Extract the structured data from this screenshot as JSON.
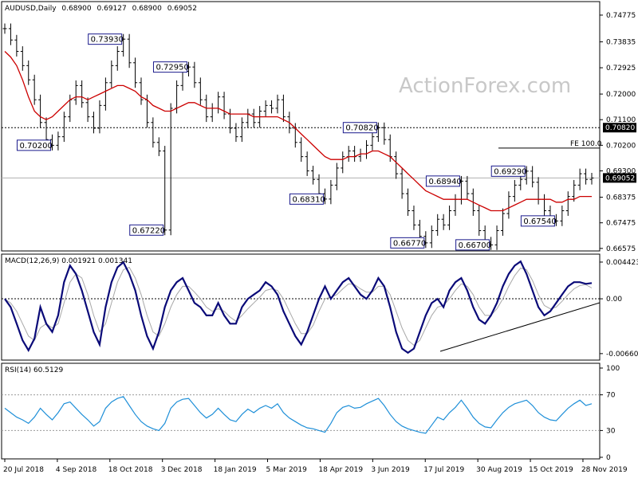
{
  "chart_data": [
    {
      "type": "ohlc",
      "title": "AUDUSD,Daily",
      "ohlc_header": [
        "0.68900",
        "0.69127",
        "0.68900",
        "0.69052"
      ],
      "watermark": "ActionForex.com",
      "ylim": [
        0.6657,
        0.7497
      ],
      "y_ticks": [
        "0.74775",
        "0.73835",
        "0.72925",
        "0.72000",
        "0.71100",
        "0.70200",
        "0.69300",
        "0.68375",
        "0.67475",
        "0.66575"
      ],
      "x_ticks": [
        "20 Jul 2018",
        "4 Sep 2018",
        "18 Oct 2018",
        "3 Dec 2018",
        "18 Jan 2019",
        "5 Mar 2019",
        "18 Apr 2019",
        "3 Jun 2019",
        "17 Jul 2019",
        "30 Aug 2019",
        "15 Oct 2019",
        "28 Nov 2019"
      ],
      "series": [
        {
          "values": [
            0.743,
            0.739,
            0.735,
            0.73,
            0.725,
            0.718,
            0.71,
            0.704,
            0.702,
            0.705,
            0.712,
            0.718,
            0.723,
            0.717,
            0.712,
            0.708,
            0.716,
            0.724,
            0.73,
            0.735,
            0.7393,
            0.731,
            0.724,
            0.718,
            0.71,
            0.703,
            0.7,
            0.6722,
            0.715,
            0.723,
            0.728,
            0.7295,
            0.724,
            0.718,
            0.712,
            0.715,
            0.719,
            0.713,
            0.708,
            0.705,
            0.71,
            0.713,
            0.71,
            0.714,
            0.716,
            0.715,
            0.718,
            0.712,
            0.708,
            0.703,
            0.698,
            0.693,
            0.69,
            0.685,
            0.6831,
            0.688,
            0.694,
            0.698,
            0.7,
            0.698,
            0.699,
            0.702,
            0.705,
            0.7082,
            0.704,
            0.698,
            0.692,
            0.685,
            0.679,
            0.674,
            0.67,
            0.6677,
            0.672,
            0.676,
            0.674,
            0.679,
            0.683,
            0.6894,
            0.685,
            0.679,
            0.672,
            0.668,
            0.667,
            0.672,
            0.678,
            0.684,
            0.688,
            0.69,
            0.6929,
            0.689,
            0.683,
            0.679,
            0.676,
            0.6754,
            0.679,
            0.684,
            0.688,
            0.692,
            0.69,
            0.6905
          ]
        },
        {
          "values": [
            0.735,
            0.733,
            0.73,
            0.725,
            0.719,
            0.714,
            0.712,
            0.711,
            0.712,
            0.714,
            0.716,
            0.718,
            0.719,
            0.719,
            0.718,
            0.719,
            0.72,
            0.721,
            0.722,
            0.723,
            0.723,
            0.722,
            0.721,
            0.719,
            0.718,
            0.716,
            0.715,
            0.714,
            0.714,
            0.715,
            0.716,
            0.717,
            0.717,
            0.716,
            0.715,
            0.715,
            0.715,
            0.714,
            0.713,
            0.713,
            0.713,
            0.713,
            0.712,
            0.712,
            0.712,
            0.712,
            0.712,
            0.711,
            0.71,
            0.708,
            0.706,
            0.704,
            0.702,
            0.7,
            0.698,
            0.697,
            0.697,
            0.697,
            0.698,
            0.698,
            0.699,
            0.699,
            0.7,
            0.7,
            0.699,
            0.698,
            0.696,
            0.694,
            0.692,
            0.69,
            0.688,
            0.686,
            0.685,
            0.684,
            0.683,
            0.683,
            0.683,
            0.683,
            0.683,
            0.682,
            0.681,
            0.68,
            0.679,
            0.679,
            0.679,
            0.68,
            0.681,
            0.682,
            0.683,
            0.683,
            0.683,
            0.683,
            0.683,
            0.682,
            0.682,
            0.683,
            0.683,
            0.684,
            0.684,
            0.684
          ]
        }
      ],
      "horizontal_levels": [
        {
          "value": 0.7082,
          "label": "0.70820"
        }
      ],
      "current_price": {
        "value": 0.69052,
        "label": "0.69052"
      },
      "fe_line": {
        "value": 0.701,
        "label": "FE 100.0"
      },
      "price_labels": [
        {
          "label": "0.73930",
          "value": 0.7393
        },
        {
          "label": "0.72950",
          "value": 0.7295
        },
        {
          "label": "0.70200",
          "value": 0.702
        },
        {
          "label": "0.67220",
          "value": 0.6722
        },
        {
          "label": "0.70820",
          "value": 0.7082
        },
        {
          "label": "0.68310",
          "value": 0.6831
        },
        {
          "label": "0.68940",
          "value": 0.6894
        },
        {
          "label": "0.66770",
          "value": 0.6677
        },
        {
          "label": "0.66700",
          "value": 0.667
        },
        {
          "label": "0.69290",
          "value": 0.6929
        },
        {
          "label": "0.67540",
          "value": 0.6754
        }
      ]
    },
    {
      "type": "line",
      "title": "MACD(12,26,9) 0.001921 0.001341",
      "ylim": [
        -0.007,
        0.0049
      ],
      "y_ticks": [
        "0.004423",
        "0.00",
        "-0.006603"
      ],
      "series": [
        {
          "values": [
            0.0,
            -0.001,
            -0.003,
            -0.005,
            -0.0062,
            -0.0048,
            -0.001,
            -0.003,
            -0.004,
            -0.002,
            0.002,
            0.004,
            0.003,
            0.001,
            -0.0015,
            -0.004,
            -0.0055,
            -0.001,
            0.002,
            0.0038,
            0.0044,
            0.003,
            0.001,
            -0.002,
            -0.0045,
            -0.006,
            -0.004,
            -0.001,
            0.001,
            0.002,
            0.0025,
            0.001,
            -0.0005,
            -0.001,
            -0.002,
            -0.002,
            -0.0005,
            -0.002,
            -0.003,
            -0.003,
            -0.001,
            0.0,
            0.0005,
            0.001,
            0.002,
            0.0015,
            0.0005,
            -0.0015,
            -0.003,
            -0.0045,
            -0.0055,
            -0.004,
            -0.002,
            0.0,
            0.0015,
            0.0,
            0.001,
            0.002,
            0.0025,
            0.0015,
            0.0005,
            0.0,
            0.001,
            0.0025,
            0.0015,
            -0.001,
            -0.004,
            -0.006,
            -0.0065,
            -0.006,
            -0.004,
            -0.002,
            -0.0005,
            0.0,
            -0.001,
            0.001,
            0.002,
            0.0025,
            0.001,
            -0.001,
            -0.0025,
            -0.003,
            -0.002,
            -0.0005,
            0.0015,
            0.003,
            0.004,
            0.0045,
            0.003,
            0.001,
            -0.001,
            -0.002,
            -0.0015,
            -0.0005,
            0.0005,
            0.0015,
            0.002,
            0.002,
            0.0018,
            0.0019
          ]
        },
        {
          "values": [
            0.0,
            -0.0005,
            -0.0015,
            -0.003,
            -0.0045,
            -0.005,
            -0.0035,
            -0.003,
            -0.0035,
            -0.003,
            -0.0005,
            0.002,
            0.003,
            0.0025,
            0.0005,
            -0.002,
            -0.004,
            -0.003,
            -0.0005,
            0.002,
            0.0035,
            0.0038,
            0.0025,
            0.0005,
            -0.002,
            -0.004,
            -0.0045,
            -0.003,
            -0.001,
            0.0005,
            0.0015,
            0.0015,
            0.0008,
            0.0,
            -0.001,
            -0.0015,
            -0.0012,
            -0.0015,
            -0.0022,
            -0.0027,
            -0.002,
            -0.0012,
            -0.0005,
            0.0002,
            0.001,
            0.0012,
            0.001,
            0.0,
            -0.0015,
            -0.003,
            -0.0042,
            -0.0042,
            -0.0032,
            -0.0015,
            0.0,
            0.0002,
            0.0005,
            0.0012,
            0.0018,
            0.0017,
            0.0012,
            0.0008,
            0.0008,
            0.0015,
            0.0015,
            0.0005,
            -0.0015,
            -0.0035,
            -0.005,
            -0.0056,
            -0.005,
            -0.0035,
            -0.002,
            -0.001,
            -0.0008,
            0.0,
            0.001,
            0.0018,
            0.0015,
            0.0005,
            -0.001,
            -0.002,
            -0.002,
            -0.0012,
            0.0,
            0.0015,
            0.0028,
            0.0037,
            0.0035,
            0.0022,
            0.0005,
            -0.0008,
            -0.0012,
            -0.001,
            -0.0003,
            0.0005,
            0.0012,
            0.0016,
            0.0017,
            0.0013
          ]
        }
      ]
    },
    {
      "type": "line",
      "title": "RSI(14) 60.5129",
      "ylim": [
        0,
        100
      ],
      "y_ticks": [
        "100",
        "70",
        "30",
        "0"
      ],
      "levels": [
        70,
        30
      ],
      "series": [
        {
          "values": [
            55,
            50,
            45,
            42,
            38,
            45,
            55,
            48,
            42,
            50,
            60,
            62,
            55,
            48,
            42,
            35,
            40,
            55,
            62,
            66,
            68,
            58,
            48,
            40,
            35,
            32,
            30,
            38,
            55,
            62,
            65,
            66,
            58,
            50,
            44,
            48,
            55,
            48,
            42,
            40,
            48,
            54,
            50,
            55,
            58,
            55,
            60,
            50,
            44,
            40,
            36,
            33,
            32,
            30,
            28,
            38,
            50,
            56,
            58,
            55,
            56,
            60,
            63,
            66,
            58,
            48,
            40,
            35,
            32,
            30,
            28,
            27,
            36,
            45,
            42,
            50,
            56,
            64,
            55,
            45,
            38,
            34,
            33,
            42,
            50,
            56,
            60,
            62,
            64,
            58,
            50,
            45,
            42,
            41,
            48,
            55,
            60,
            64,
            58,
            60
          ]
        }
      ]
    }
  ]
}
